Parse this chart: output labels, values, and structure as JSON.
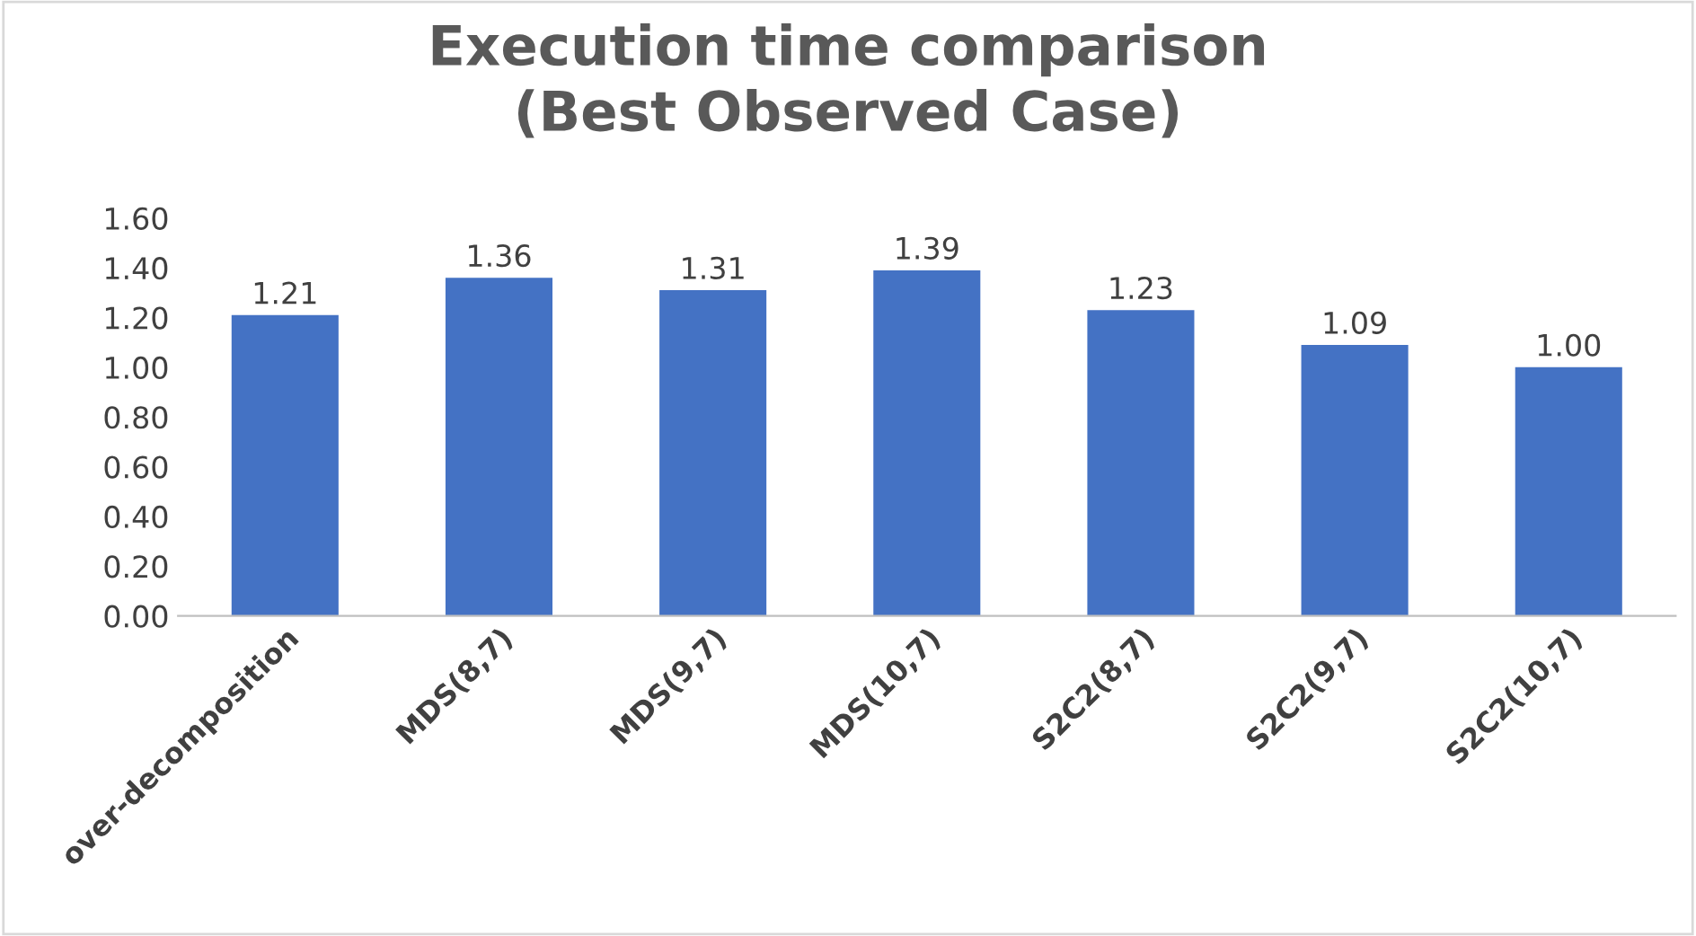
{
  "chart_data": {
    "type": "bar",
    "title": "Execution time comparison\n(Best Observed Case)",
    "categories": [
      "over-decomposition",
      "MDS(8,7)",
      "MDS(9,7)",
      "MDS(10,7)",
      "S2C2(8,7)",
      "S2C2(9,7)",
      "S2C2(10,7)"
    ],
    "values": [
      1.21,
      1.36,
      1.31,
      1.39,
      1.23,
      1.09,
      1.0
    ],
    "value_labels": [
      "1.21",
      "1.36",
      "1.31",
      "1.39",
      "1.23",
      "1.09",
      "1.00"
    ],
    "color": "#4472c4",
    "ylim": [
      0,
      1.6
    ],
    "yticks": [
      {
        "value": 0,
        "label": "0.00"
      },
      {
        "value": 0.2,
        "label": "0.20"
      },
      {
        "value": 0.4,
        "label": "0.40"
      },
      {
        "value": 0.6,
        "label": "0.60"
      },
      {
        "value": 0.8,
        "label": "0.80"
      },
      {
        "value": 1.0,
        "label": "1.00"
      },
      {
        "value": 1.2,
        "label": "1.20"
      },
      {
        "value": 1.4,
        "label": "1.40"
      },
      {
        "value": 1.6,
        "label": "1.60"
      }
    ],
    "grid": false
  }
}
